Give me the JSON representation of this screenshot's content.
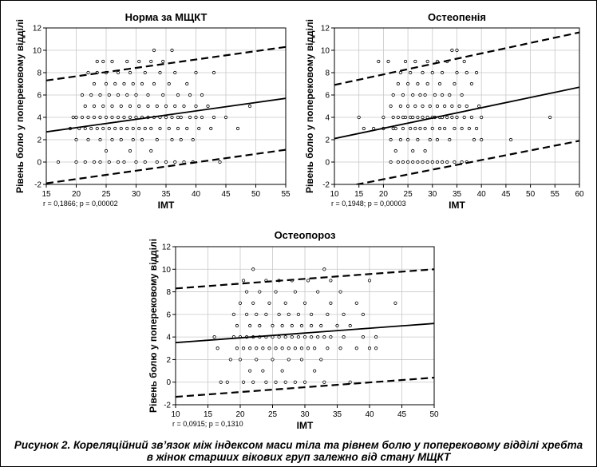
{
  "caption": {
    "line1": "Рисунок 2. Кореляційний зв’язок між індексом маси тіла та рівнем болю у поперековому відділі хребта",
    "line2": "в жінок старших вікових груп залежно від стану МЩКТ"
  },
  "chart_data": [
    {
      "type": "scatter",
      "title": "Норма за МЩКТ",
      "xlabel": "ІМТ",
      "ylabel": "Рівень болю у поперековому відділі",
      "xlim": [
        15,
        55
      ],
      "ylim": [
        -2,
        12
      ],
      "xticks": [
        15,
        20,
        25,
        30,
        35,
        40,
        45,
        50,
        55
      ],
      "yticks": [
        -2,
        0,
        2,
        4,
        6,
        8,
        10,
        12
      ],
      "grid": true,
      "stat_text": "r = 0,1866; p = 0,00002",
      "fit_line": {
        "x": [
          15,
          55
        ],
        "y": [
          2.7,
          5.7
        ]
      },
      "conf_upper": {
        "x": [
          15,
          55
        ],
        "y": [
          7.3,
          10.3
        ]
      },
      "conf_lower": {
        "x": [
          15,
          55
        ],
        "y": [
          -1.9,
          1.1
        ]
      },
      "points": [
        [
          17,
          0
        ],
        [
          19,
          3
        ],
        [
          19.5,
          4
        ],
        [
          20,
          0
        ],
        [
          20,
          2
        ],
        [
          20,
          4
        ],
        [
          20.5,
          3
        ],
        [
          21,
          4
        ],
        [
          21,
          6
        ],
        [
          21.5,
          0
        ],
        [
          21.5,
          3
        ],
        [
          21.5,
          5
        ],
        [
          22,
          4
        ],
        [
          22,
          8
        ],
        [
          22,
          2
        ],
        [
          22.5,
          3
        ],
        [
          22.5,
          6
        ],
        [
          23,
          0
        ],
        [
          23,
          4
        ],
        [
          23,
          5
        ],
        [
          23,
          7
        ],
        [
          23.5,
          3
        ],
        [
          23.5,
          8
        ],
        [
          23.5,
          9
        ],
        [
          24,
          0
        ],
        [
          24,
          2
        ],
        [
          24,
          4
        ],
        [
          24,
          6
        ],
        [
          24.5,
          3
        ],
        [
          24.5,
          5
        ],
        [
          24.5,
          9
        ],
        [
          25,
          1
        ],
        [
          25,
          4
        ],
        [
          25,
          7
        ],
        [
          25,
          8
        ],
        [
          25.5,
          0
        ],
        [
          25.5,
          3
        ],
        [
          25.5,
          6
        ],
        [
          26,
          2
        ],
        [
          26,
          4
        ],
        [
          26,
          5
        ],
        [
          26,
          9
        ],
        [
          26.5,
          3
        ],
        [
          26.5,
          7
        ],
        [
          27,
          0
        ],
        [
          27,
          4
        ],
        [
          27,
          6
        ],
        [
          27,
          8
        ],
        [
          27.5,
          2
        ],
        [
          27.5,
          3
        ],
        [
          27.5,
          5
        ],
        [
          28,
          0
        ],
        [
          28,
          4
        ],
        [
          28,
          7
        ],
        [
          28.5,
          3
        ],
        [
          28.5,
          6
        ],
        [
          28.5,
          9
        ],
        [
          29,
          1
        ],
        [
          29,
          4
        ],
        [
          29,
          5
        ],
        [
          29,
          8
        ],
        [
          29.5,
          2
        ],
        [
          29.5,
          3
        ],
        [
          29.5,
          7
        ],
        [
          30,
          0
        ],
        [
          30,
          4
        ],
        [
          30,
          6
        ],
        [
          30.5,
          3
        ],
        [
          30.5,
          5
        ],
        [
          30.5,
          9
        ],
        [
          31,
          2
        ],
        [
          31,
          4
        ],
        [
          31,
          7
        ],
        [
          31.5,
          0
        ],
        [
          31.5,
          3
        ],
        [
          31.5,
          8
        ],
        [
          32,
          4
        ],
        [
          32,
          5
        ],
        [
          32,
          6
        ],
        [
          32.5,
          1
        ],
        [
          32.5,
          3
        ],
        [
          32.5,
          9
        ],
        [
          33,
          4
        ],
        [
          33,
          7
        ],
        [
          33,
          10
        ],
        [
          33.5,
          0
        ],
        [
          33.5,
          2
        ],
        [
          33.5,
          5
        ],
        [
          34,
          3
        ],
        [
          34,
          4
        ],
        [
          34,
          8
        ],
        [
          34.5,
          6
        ],
        [
          34.5,
          9
        ],
        [
          35,
          0
        ],
        [
          35,
          4
        ],
        [
          35,
          5
        ],
        [
          35.5,
          3
        ],
        [
          35.5,
          7
        ],
        [
          36,
          2
        ],
        [
          36,
          4
        ],
        [
          36,
          10
        ],
        [
          36.5,
          0
        ],
        [
          36.5,
          5
        ],
        [
          36.5,
          8
        ],
        [
          37,
          3
        ],
        [
          37,
          4
        ],
        [
          37,
          6
        ],
        [
          37.5,
          2
        ],
        [
          37.5,
          4
        ],
        [
          38,
          0
        ],
        [
          38,
          5
        ],
        [
          38.5,
          3
        ],
        [
          38.5,
          7
        ],
        [
          39,
          4
        ],
        [
          39,
          6
        ],
        [
          39.5,
          0
        ],
        [
          39.5,
          2
        ],
        [
          40,
          4
        ],
        [
          40,
          5
        ],
        [
          40,
          8
        ],
        [
          40.5,
          3
        ],
        [
          41,
          4
        ],
        [
          41,
          6
        ],
        [
          42,
          5
        ],
        [
          42.5,
          3
        ],
        [
          43,
          4
        ],
        [
          43,
          8
        ],
        [
          44,
          0
        ],
        [
          45,
          4
        ],
        [
          47,
          3
        ],
        [
          49,
          5
        ]
      ]
    },
    {
      "type": "scatter",
      "title": "Остеопенія",
      "xlabel": "ІМТ",
      "ylabel": "Рівень болю у поперековому відділі",
      "xlim": [
        10,
        60
      ],
      "ylim": [
        -2,
        12
      ],
      "xticks": [
        10,
        15,
        20,
        25,
        30,
        35,
        40,
        45,
        50,
        55,
        60
      ],
      "yticks": [
        -2,
        0,
        2,
        4,
        6,
        8,
        10,
        12
      ],
      "grid": true,
      "stat_text": "r = 0,1948; p = 0,00003",
      "fit_line": {
        "x": [
          10,
          60
        ],
        "y": [
          2.1,
          6.7
        ]
      },
      "conf_upper": {
        "x": [
          10,
          60
        ],
        "y": [
          6.9,
          11.6
        ]
      },
      "conf_lower": {
        "x": [
          10,
          60
        ],
        "y": [
          -2.4,
          1.9
        ]
      },
      "points": [
        [
          15,
          4
        ],
        [
          16,
          3
        ],
        [
          18,
          3
        ],
        [
          19,
          9
        ],
        [
          20,
          3
        ],
        [
          20,
          4
        ],
        [
          21,
          9
        ],
        [
          21.5,
          0
        ],
        [
          21.5,
          2
        ],
        [
          21.5,
          5
        ],
        [
          22,
          3
        ],
        [
          22,
          4
        ],
        [
          22,
          6
        ],
        [
          22.5,
          1
        ],
        [
          22.5,
          3
        ],
        [
          23,
          0
        ],
        [
          23,
          4
        ],
        [
          23,
          7
        ],
        [
          23.5,
          2
        ],
        [
          23.5,
          5
        ],
        [
          23.5,
          8
        ],
        [
          24,
          0
        ],
        [
          24,
          3
        ],
        [
          24,
          4
        ],
        [
          24,
          6
        ],
        [
          24.5,
          4
        ],
        [
          24.5,
          9
        ],
        [
          25,
          0
        ],
        [
          25,
          2
        ],
        [
          25,
          5
        ],
        [
          25,
          7
        ],
        [
          25.5,
          3
        ],
        [
          25.5,
          4
        ],
        [
          25.5,
          8
        ],
        [
          26,
          0
        ],
        [
          26,
          1
        ],
        [
          26,
          4
        ],
        [
          26,
          6
        ],
        [
          26.5,
          3
        ],
        [
          26.5,
          5
        ],
        [
          26.5,
          9
        ],
        [
          27,
          0
        ],
        [
          27,
          2
        ],
        [
          27,
          4
        ],
        [
          27,
          7
        ],
        [
          27.5,
          3
        ],
        [
          27.5,
          6
        ],
        [
          28,
          0
        ],
        [
          28,
          4
        ],
        [
          28,
          5
        ],
        [
          28,
          8
        ],
        [
          28.5,
          1
        ],
        [
          28.5,
          3
        ],
        [
          28.5,
          6
        ],
        [
          29,
          0
        ],
        [
          29,
          4
        ],
        [
          29,
          7
        ],
        [
          29,
          9
        ],
        [
          29.5,
          2
        ],
        [
          29.5,
          5
        ],
        [
          30,
          0
        ],
        [
          30,
          3
        ],
        [
          30,
          4
        ],
        [
          30,
          8
        ],
        [
          30.5,
          4
        ],
        [
          30.5,
          6
        ],
        [
          31,
          0
        ],
        [
          31,
          2
        ],
        [
          31,
          5
        ],
        [
          31,
          9
        ],
        [
          31.5,
          3
        ],
        [
          31.5,
          4
        ],
        [
          31.5,
          7
        ],
        [
          32,
          0
        ],
        [
          32,
          4
        ],
        [
          32,
          6
        ],
        [
          32,
          8
        ],
        [
          32.5,
          3
        ],
        [
          32.5,
          5
        ],
        [
          33,
          0
        ],
        [
          33,
          4
        ],
        [
          33,
          9
        ],
        [
          33.5,
          2
        ],
        [
          33.5,
          6
        ],
        [
          34,
          4
        ],
        [
          34,
          5
        ],
        [
          34,
          10
        ],
        [
          34.5,
          0
        ],
        [
          34.5,
          3
        ],
        [
          34.5,
          7
        ],
        [
          35,
          4
        ],
        [
          35,
          8
        ],
        [
          35,
          10
        ],
        [
          35.5,
          5
        ],
        [
          36,
          0
        ],
        [
          36,
          3
        ],
        [
          36,
          6
        ],
        [
          36.5,
          4
        ],
        [
          36.5,
          9
        ],
        [
          37,
          0
        ],
        [
          37,
          5
        ],
        [
          37,
          8
        ],
        [
          37.5,
          3
        ],
        [
          38,
          4
        ],
        [
          38,
          7
        ],
        [
          38.5,
          2
        ],
        [
          39,
          8
        ],
        [
          39,
          3
        ],
        [
          39.5,
          5
        ],
        [
          40,
          4
        ],
        [
          40,
          2
        ],
        [
          46,
          2
        ],
        [
          54,
          4
        ]
      ]
    },
    {
      "type": "scatter",
      "title": "Остеопороз",
      "xlabel": "ІМТ",
      "ylabel": "Рівень болю у поперековому відділі",
      "xlim": [
        10,
        50
      ],
      "ylim": [
        -2,
        12
      ],
      "xticks": [
        10,
        15,
        20,
        25,
        30,
        35,
        40,
        45,
        50
      ],
      "yticks": [
        -2,
        0,
        2,
        4,
        6,
        8,
        10,
        12
      ],
      "grid": true,
      "stat_text": "r = 0,0915; p = 0,1310",
      "fit_line": {
        "x": [
          10,
          50
        ],
        "y": [
          3.5,
          5.2
        ]
      },
      "conf_upper": {
        "x": [
          10,
          50
        ],
        "y": [
          8.3,
          10.0
        ]
      },
      "conf_lower": {
        "x": [
          10,
          50
        ],
        "y": [
          -1.3,
          0.4
        ]
      },
      "points": [
        [
          16,
          4
        ],
        [
          16.5,
          3
        ],
        [
          17,
          0
        ],
        [
          18,
          0
        ],
        [
          18.5,
          2
        ],
        [
          19,
          4
        ],
        [
          19,
          6
        ],
        [
          19.5,
          3
        ],
        [
          19.5,
          5
        ],
        [
          20,
          2
        ],
        [
          20,
          4
        ],
        [
          20,
          7
        ],
        [
          20.5,
          0
        ],
        [
          20.5,
          3
        ],
        [
          20.5,
          9
        ],
        [
          21,
          4
        ],
        [
          21,
          6
        ],
        [
          21,
          8
        ],
        [
          21.5,
          1
        ],
        [
          21.5,
          3
        ],
        [
          21.5,
          5
        ],
        [
          22,
          0
        ],
        [
          22,
          4
        ],
        [
          22,
          7
        ],
        [
          22,
          10
        ],
        [
          22.5,
          2
        ],
        [
          22.5,
          3
        ],
        [
          22.5,
          6
        ],
        [
          23,
          4
        ],
        [
          23,
          5
        ],
        [
          23,
          8
        ],
        [
          23.5,
          1
        ],
        [
          23.5,
          3
        ],
        [
          24,
          0
        ],
        [
          24,
          4
        ],
        [
          24,
          6
        ],
        [
          24,
          9
        ],
        [
          24.5,
          3
        ],
        [
          24.5,
          7
        ],
        [
          25,
          2
        ],
        [
          25,
          4
        ],
        [
          25,
          5
        ],
        [
          25.5,
          0
        ],
        [
          25.5,
          3
        ],
        [
          25.5,
          8
        ],
        [
          26,
          4
        ],
        [
          26,
          6
        ],
        [
          26,
          9
        ],
        [
          26.5,
          1
        ],
        [
          26.5,
          3
        ],
        [
          26.5,
          5
        ],
        [
          27,
          0
        ],
        [
          27,
          4
        ],
        [
          27,
          7
        ],
        [
          27.5,
          2
        ],
        [
          27.5,
          3
        ],
        [
          27.5,
          6
        ],
        [
          28,
          4
        ],
        [
          28,
          5
        ],
        [
          28,
          9
        ],
        [
          28.5,
          0
        ],
        [
          28.5,
          3
        ],
        [
          28.5,
          8
        ],
        [
          29,
          4
        ],
        [
          29,
          6
        ],
        [
          29.5,
          2
        ],
        [
          29.5,
          3
        ],
        [
          29.5,
          5
        ],
        [
          30,
          0
        ],
        [
          30,
          4
        ],
        [
          30,
          7
        ],
        [
          30.5,
          3
        ],
        [
          30.5,
          9
        ],
        [
          31,
          4
        ],
        [
          31,
          5
        ],
        [
          31,
          6
        ],
        [
          31.5,
          1
        ],
        [
          31.5,
          3
        ],
        [
          32,
          4
        ],
        [
          32,
          8
        ],
        [
          32.5,
          2
        ],
        [
          32.5,
          5
        ],
        [
          33,
          0
        ],
        [
          33,
          4
        ],
        [
          33,
          10
        ],
        [
          33.5,
          3
        ],
        [
          33.5,
          6
        ],
        [
          34,
          4
        ],
        [
          34,
          7
        ],
        [
          34,
          9
        ],
        [
          35,
          5
        ],
        [
          35.5,
          3
        ],
        [
          35.5,
          8
        ],
        [
          36,
          4
        ],
        [
          36,
          6
        ],
        [
          37,
          0
        ],
        [
          37,
          5
        ],
        [
          38,
          3
        ],
        [
          38,
          7
        ],
        [
          39,
          4
        ],
        [
          39,
          6
        ],
        [
          40,
          3
        ],
        [
          40,
          9
        ],
        [
          41,
          4
        ],
        [
          41,
          3
        ],
        [
          44,
          7
        ]
      ]
    }
  ]
}
